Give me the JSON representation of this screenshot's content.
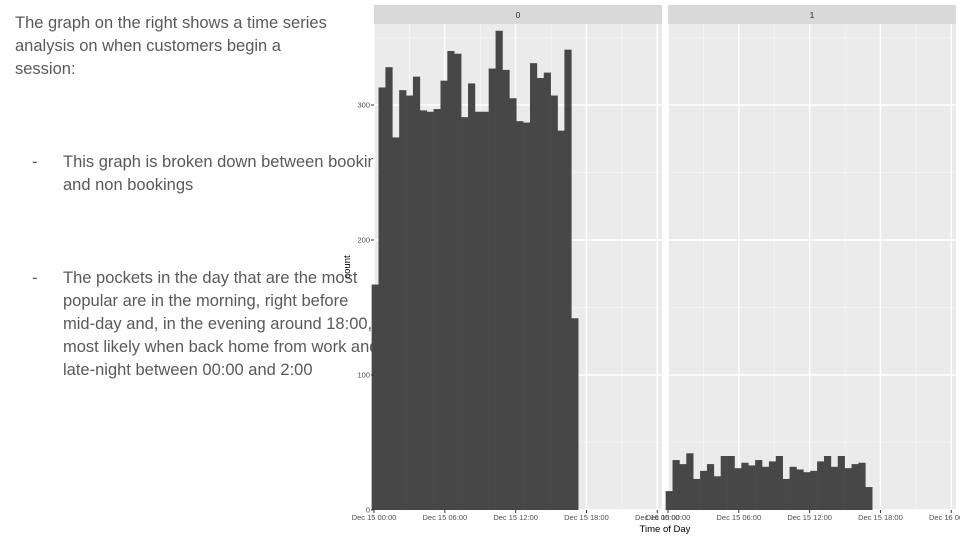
{
  "slide": {
    "intro": "The graph on the right shows  a time series analysis on when customers begin a session:",
    "bullets": [
      "This graph is broken down between booking and non bookings",
      "The pockets in the day that are the most popular are in the morning, right before mid-day and, in the evening around 18:00, most likely when back home from work and late-night between 00:00 and 2:00"
    ],
    "bullet_marker": "-"
  },
  "chart_data": {
    "type": "bar",
    "title": "",
    "xlabel": "Time of Day",
    "ylabel": "count",
    "ylim": [
      0,
      360
    ],
    "yticks": [
      0,
      100,
      200,
      300
    ],
    "xlim": [
      0,
      24.4
    ],
    "xticks": [
      {
        "label": "Dec 15 00:00",
        "value": 0
      },
      {
        "label": "Dec 15 06:00",
        "value": 6
      },
      {
        "label": "Dec 15 12:00",
        "value": 12
      },
      {
        "label": "Dec 15 18:00",
        "value": 18
      },
      {
        "label": "Dec 16 00:00",
        "value": 24
      }
    ],
    "bin_start": -0.2,
    "bin_width": 0.5833,
    "panels": [
      {
        "label": "0",
        "values": [
          167,
          313,
          328,
          276,
          311,
          307,
          321,
          296,
          295,
          297,
          318,
          340,
          338,
          291,
          316,
          295,
          295,
          327,
          355,
          326,
          305,
          288,
          287,
          331,
          320,
          324,
          307,
          281,
          341,
          142
        ]
      },
      {
        "label": "1",
        "values": [
          14,
          37,
          34,
          42,
          23,
          29,
          34,
          25,
          40,
          40,
          31,
          35,
          33,
          37,
          32,
          36,
          40,
          23,
          32,
          30,
          28,
          29,
          36,
          40,
          32,
          40,
          31,
          34,
          35,
          17
        ]
      }
    ],
    "colors": {
      "bar": "#474747",
      "panel_bg": "#ebebeb",
      "strip_bg": "#d9d9d9",
      "grid_major": "#ffffff",
      "grid_minor": "#f5f5f5",
      "text": "#4d4d4d",
      "axis_title": "#000000"
    },
    "grid": true,
    "legend": "none"
  }
}
